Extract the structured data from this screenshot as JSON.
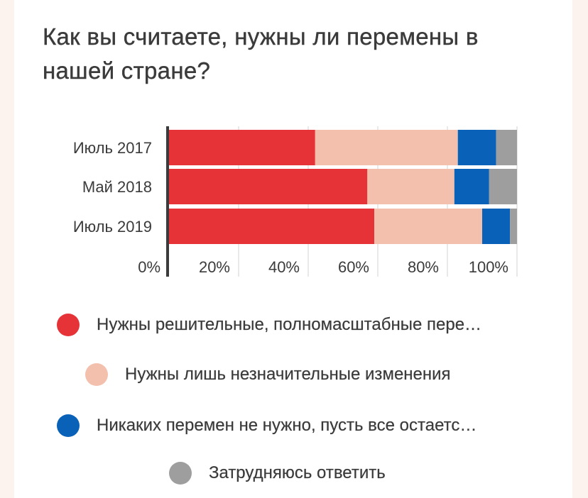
{
  "title": "Как вы считаете, нужны ли перемены в нашей стране?",
  "legend": [
    {
      "label": "Нужны решительные, полномасштабные пере…",
      "color": "#e53338"
    },
    {
      "label": "Нужны лишь незначительные изменения",
      "color": "#f3c0ae"
    },
    {
      "label": "Никаких перемен не нужно, пусть все остаетс…",
      "color": "#0a62b8"
    },
    {
      "label": "Затрудняюсь ответить",
      "color": "#9e9e9e"
    }
  ],
  "chart_data": {
    "type": "bar",
    "orientation": "horizontal",
    "stacked": true,
    "categories": [
      "Июль 2017",
      "Май 2018",
      "Июль 2019"
    ],
    "series": [
      {
        "name": "Нужны решительные, полномасштабные пере…",
        "color": "#e53338",
        "values": [
          42,
          57,
          59
        ]
      },
      {
        "name": "Нужны лишь незначительные изменения",
        "color": "#f3c0ae",
        "values": [
          41,
          25,
          31
        ]
      },
      {
        "name": "Никаких перемен не нужно, пусть все остаетс…",
        "color": "#0a62b8",
        "values": [
          11,
          10,
          8
        ]
      },
      {
        "name": "Затрудняюсь ответить",
        "color": "#9e9e9e",
        "values": [
          6,
          8,
          2
        ]
      }
    ],
    "xlim": [
      0,
      100
    ],
    "xticks": [
      "0%",
      "20%",
      "40%",
      "60%",
      "80%",
      "100%"
    ],
    "grid": true,
    "legend_position": "bottom"
  }
}
